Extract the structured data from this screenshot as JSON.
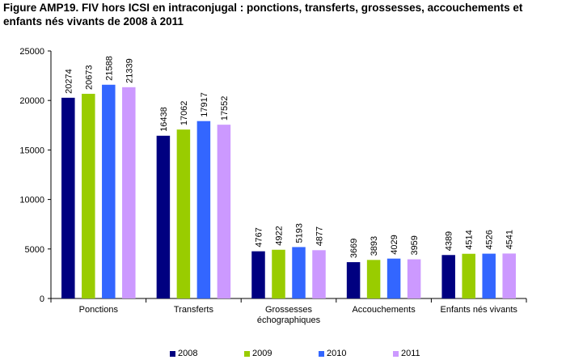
{
  "chart_data": {
    "type": "bar",
    "title": "Figure AMP19. FIV hors ICSI en intraconjugal : ponctions, transferts, grossesses, accouchements et enfants nés vivants de 2008 à 2011",
    "categories": [
      [
        "Ponctions"
      ],
      [
        "Transferts"
      ],
      [
        "Grossesses",
        "échographiques"
      ],
      [
        "Accouchements"
      ],
      [
        "Enfants nés vivants"
      ]
    ],
    "series": [
      {
        "name": "2008",
        "color": "#000080",
        "values": [
          20274,
          16438,
          4767,
          3669,
          4389
        ]
      },
      {
        "name": "2009",
        "color": "#99CC00",
        "values": [
          20673,
          17062,
          4922,
          3893,
          4514
        ]
      },
      {
        "name": "2010",
        "color": "#3366FF",
        "values": [
          21588,
          17917,
          5193,
          4029,
          4526
        ]
      },
      {
        "name": "2011",
        "color": "#CC99FF",
        "values": [
          21339,
          17552,
          4877,
          3959,
          4541
        ]
      }
    ],
    "ylim": [
      0,
      25000
    ],
    "yticks": [
      0,
      5000,
      10000,
      15000,
      20000,
      25000
    ],
    "xlabel": "",
    "ylabel": "",
    "grid": false,
    "legend_position": "bottom"
  }
}
